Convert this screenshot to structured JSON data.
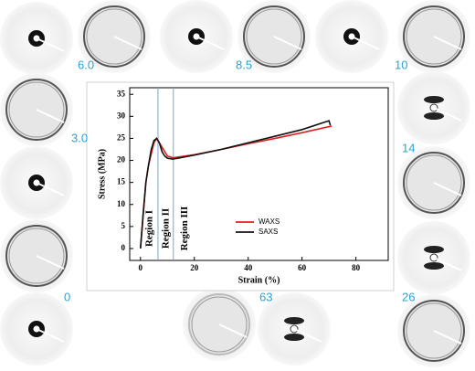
{
  "chart_data": {
    "type": "line",
    "xlabel": "Strain (%)",
    "ylabel": "Stress (MPa)",
    "xlim": [
      -4,
      92
    ],
    "ylim": [
      -2.7,
      36.5
    ],
    "xticks": [
      0,
      20,
      40,
      60,
      80
    ],
    "yticks": [
      0,
      5,
      10,
      15,
      20,
      25,
      30,
      35
    ],
    "region_boundaries": [
      6.5,
      12.2
    ],
    "region_labels": [
      "Region I",
      "Region II",
      "Region III"
    ],
    "legend": "center",
    "series": [
      {
        "name": "WAXS",
        "color": "#e02020",
        "x": [
          0,
          2,
          3,
          5,
          6,
          8,
          10,
          12,
          20,
          30,
          40,
          50,
          60,
          71
        ],
        "values": [
          0,
          15,
          19,
          24,
          25,
          23,
          21,
          20.6,
          21.3,
          22.5,
          23.8,
          25,
          26.3,
          27.8
        ]
      },
      {
        "name": "SAXS",
        "color": "#111111",
        "x": [
          0,
          1,
          2,
          3,
          4,
          5,
          6,
          7,
          8,
          9,
          10,
          12,
          14,
          20,
          30,
          40,
          50,
          60,
          70,
          70.5
        ],
        "values": [
          0,
          8,
          15,
          19,
          22.5,
          24.5,
          25,
          24,
          22,
          21,
          20.5,
          20.3,
          20.5,
          21.2,
          22.5,
          24,
          25.5,
          27,
          29,
          28
        ]
      }
    ]
  },
  "pattern_labels": [
    "6.0",
    "8.5",
    "10",
    "3.0",
    "14",
    "0",
    "63",
    "26"
  ]
}
